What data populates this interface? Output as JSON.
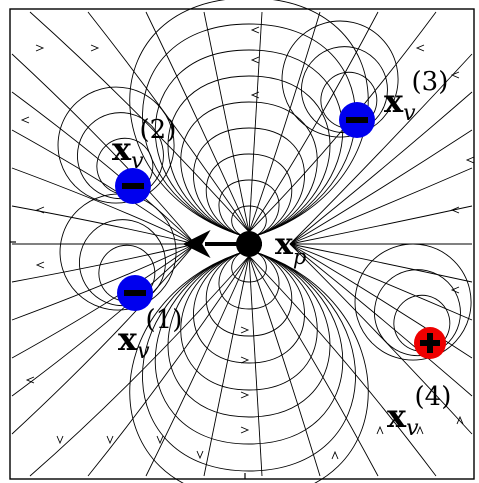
{
  "figure": {
    "colors": {
      "background": "#ffffff",
      "frame": "#000000",
      "streamline": "#000000",
      "negative_fill": "#0000ee",
      "positive_fill": "#ee0000",
      "sign_mark": "#000000",
      "particle": "#000000"
    },
    "particle": {
      "symbol": "x",
      "subscript": "p",
      "arrow_direction": "left"
    },
    "vortices": [
      {
        "id": "v1",
        "symbol": "x",
        "subscript": "v",
        "superscript": "(1)",
        "sign": "negative",
        "sign_glyph": "minus"
      },
      {
        "id": "v2",
        "symbol": "x",
        "subscript": "v",
        "superscript": "(2)",
        "sign": "negative",
        "sign_glyph": "minus"
      },
      {
        "id": "v3",
        "symbol": "x",
        "subscript": "v",
        "superscript": "(3)",
        "sign": "negative",
        "sign_glyph": "minus"
      },
      {
        "id": "v4",
        "symbol": "x",
        "subscript": "v",
        "superscript": "(4)",
        "sign": "positive",
        "sign_glyph": "plus"
      }
    ]
  }
}
